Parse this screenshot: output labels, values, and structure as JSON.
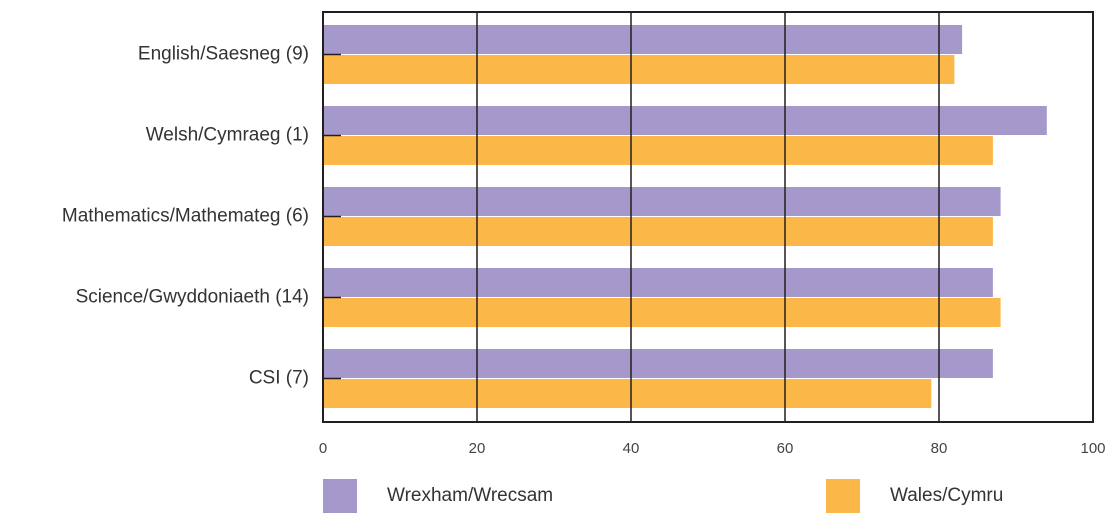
{
  "chart_data": {
    "type": "bar",
    "orientation": "horizontal",
    "categories": [
      "English/Saesneg (9)",
      "Welsh/Cymraeg (1)",
      "Mathematics/Mathemateg (6)",
      "Science/Gwyddoniaeth (14)",
      "CSI (7)"
    ],
    "series": [
      {
        "name": "Wrexham/Wrecsam",
        "color": "#a598cb",
        "values": [
          83,
          94,
          88,
          87,
          87
        ]
      },
      {
        "name": "Wales/Cymru",
        "color": "#fbb848",
        "values": [
          82,
          87,
          87,
          88,
          79
        ]
      }
    ],
    "xlim": [
      0,
      100
    ],
    "xticks": [
      "0",
      "20",
      "40",
      "60",
      "80",
      "100"
    ],
    "grid": true,
    "legend_position": "bottom"
  },
  "legend": {
    "items": [
      {
        "label": "Wrexham/Wrecsam",
        "color": "#a598cb"
      },
      {
        "label": "Wales/Cymru",
        "color": "#fbb848"
      }
    ]
  }
}
